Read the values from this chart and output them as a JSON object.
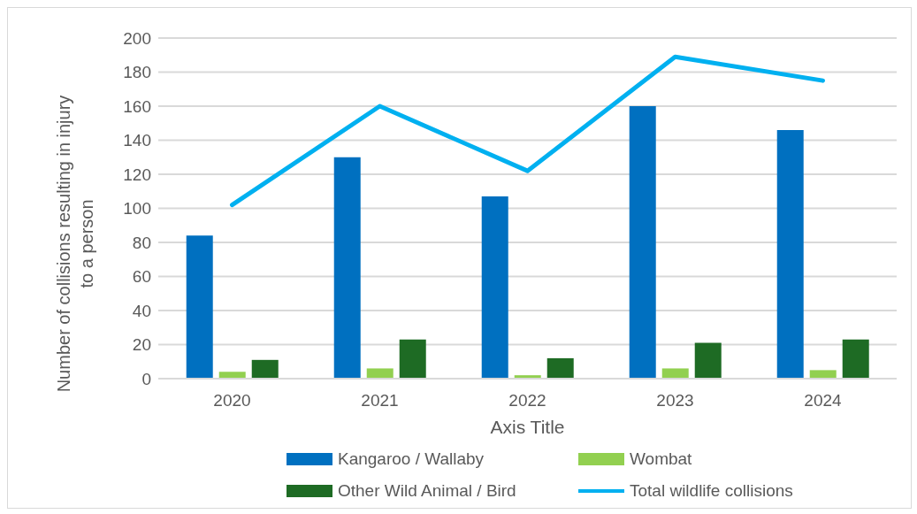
{
  "chart_data": {
    "type": "bar",
    "xlabel": "Axis Title",
    "ylabel": "Number of collisions resulting in injury to a person",
    "categories": [
      "2020",
      "2021",
      "2022",
      "2023",
      "2024"
    ],
    "series": [
      {
        "name": "Kangaroo / Wallaby",
        "color": "#0070c0",
        "values": [
          84,
          130,
          107,
          160,
          146
        ]
      },
      {
        "name": "Wombat",
        "color": "#92d050",
        "values": [
          4,
          6,
          2,
          6,
          5
        ]
      },
      {
        "name": "Other Wild Animal / Bird",
        "color": "#1e6b24",
        "values": [
          11,
          23,
          12,
          21,
          23
        ]
      },
      {
        "name": "Total wildlife collisions",
        "type": "line",
        "color": "#00b0f0",
        "values": [
          102,
          160,
          122,
          189,
          175
        ]
      }
    ],
    "ylim": [
      0,
      200
    ],
    "yticks": [
      0,
      20,
      40,
      60,
      80,
      100,
      120,
      140,
      160,
      180,
      200
    ],
    "grid": "y",
    "legend": "bottom",
    "marker": "none"
  }
}
